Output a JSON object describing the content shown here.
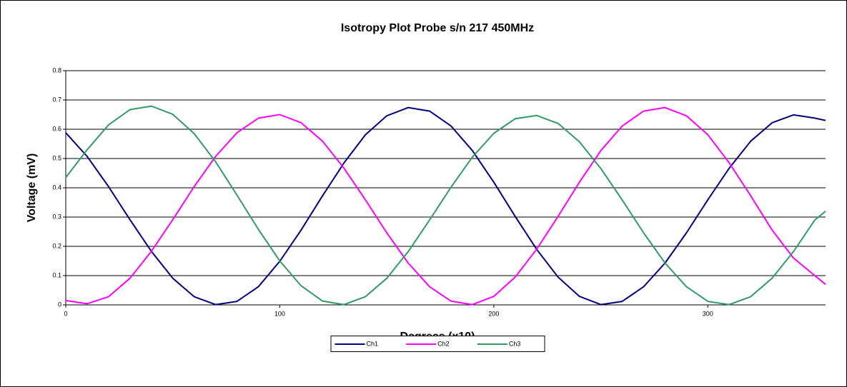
{
  "chart_data": {
    "type": "line",
    "title": "Isotropy Plot Probe s/n 217 450MHz",
    "xlabel": "Degrees (x10)",
    "ylabel": "Voltage (mV)",
    "x": [
      0,
      10,
      20,
      30,
      40,
      50,
      60,
      70,
      80,
      90,
      100,
      110,
      120,
      130,
      140,
      150,
      160,
      170,
      180,
      190,
      200,
      210,
      220,
      230,
      240,
      250,
      260,
      270,
      280,
      290,
      300,
      310,
      320,
      330,
      340,
      350,
      355
    ],
    "series": [
      {
        "name": "Ch1",
        "color": "#000080",
        "values": [
          0.588,
          0.507,
          0.404,
          0.291,
          0.183,
          0.091,
          0.028,
          0.001,
          0.012,
          0.062,
          0.149,
          0.256,
          0.373,
          0.485,
          0.581,
          0.646,
          0.674,
          0.662,
          0.611,
          0.527,
          0.419,
          0.302,
          0.19,
          0.095,
          0.029,
          0.001,
          0.012,
          0.062,
          0.143,
          0.246,
          0.359,
          0.467,
          0.559,
          0.622,
          0.649,
          0.638,
          0.63
        ]
      },
      {
        "name": "Ch2",
        "color": "#ff00ff",
        "values": [
          0.015,
          0.004,
          0.028,
          0.091,
          0.183,
          0.291,
          0.404,
          0.507,
          0.588,
          0.638,
          0.65,
          0.622,
          0.559,
          0.467,
          0.359,
          0.246,
          0.143,
          0.062,
          0.013,
          0.001,
          0.029,
          0.095,
          0.19,
          0.302,
          0.419,
          0.527,
          0.611,
          0.662,
          0.674,
          0.646,
          0.581,
          0.485,
          0.373,
          0.256,
          0.16,
          0.1,
          0.07
        ]
      },
      {
        "name": "Ch3",
        "color": "#339966",
        "values": [
          0.435,
          0.53,
          0.615,
          0.667,
          0.679,
          0.651,
          0.585,
          0.489,
          0.375,
          0.258,
          0.15,
          0.065,
          0.013,
          0.001,
          0.028,
          0.091,
          0.182,
          0.29,
          0.402,
          0.505,
          0.586,
          0.636,
          0.647,
          0.62,
          0.557,
          0.466,
          0.358,
          0.246,
          0.143,
          0.062,
          0.012,
          0.001,
          0.028,
          0.091,
          0.182,
          0.29,
          0.32
        ]
      }
    ],
    "xlim": [
      0,
      355
    ],
    "xticks": [
      0,
      100,
      200,
      300
    ],
    "ylim": [
      0,
      0.8
    ],
    "yticks": [
      0,
      0.1,
      0.2,
      0.3,
      0.4,
      0.5,
      0.6,
      0.7,
      0.8
    ],
    "grid": true,
    "legend": "bottom"
  }
}
